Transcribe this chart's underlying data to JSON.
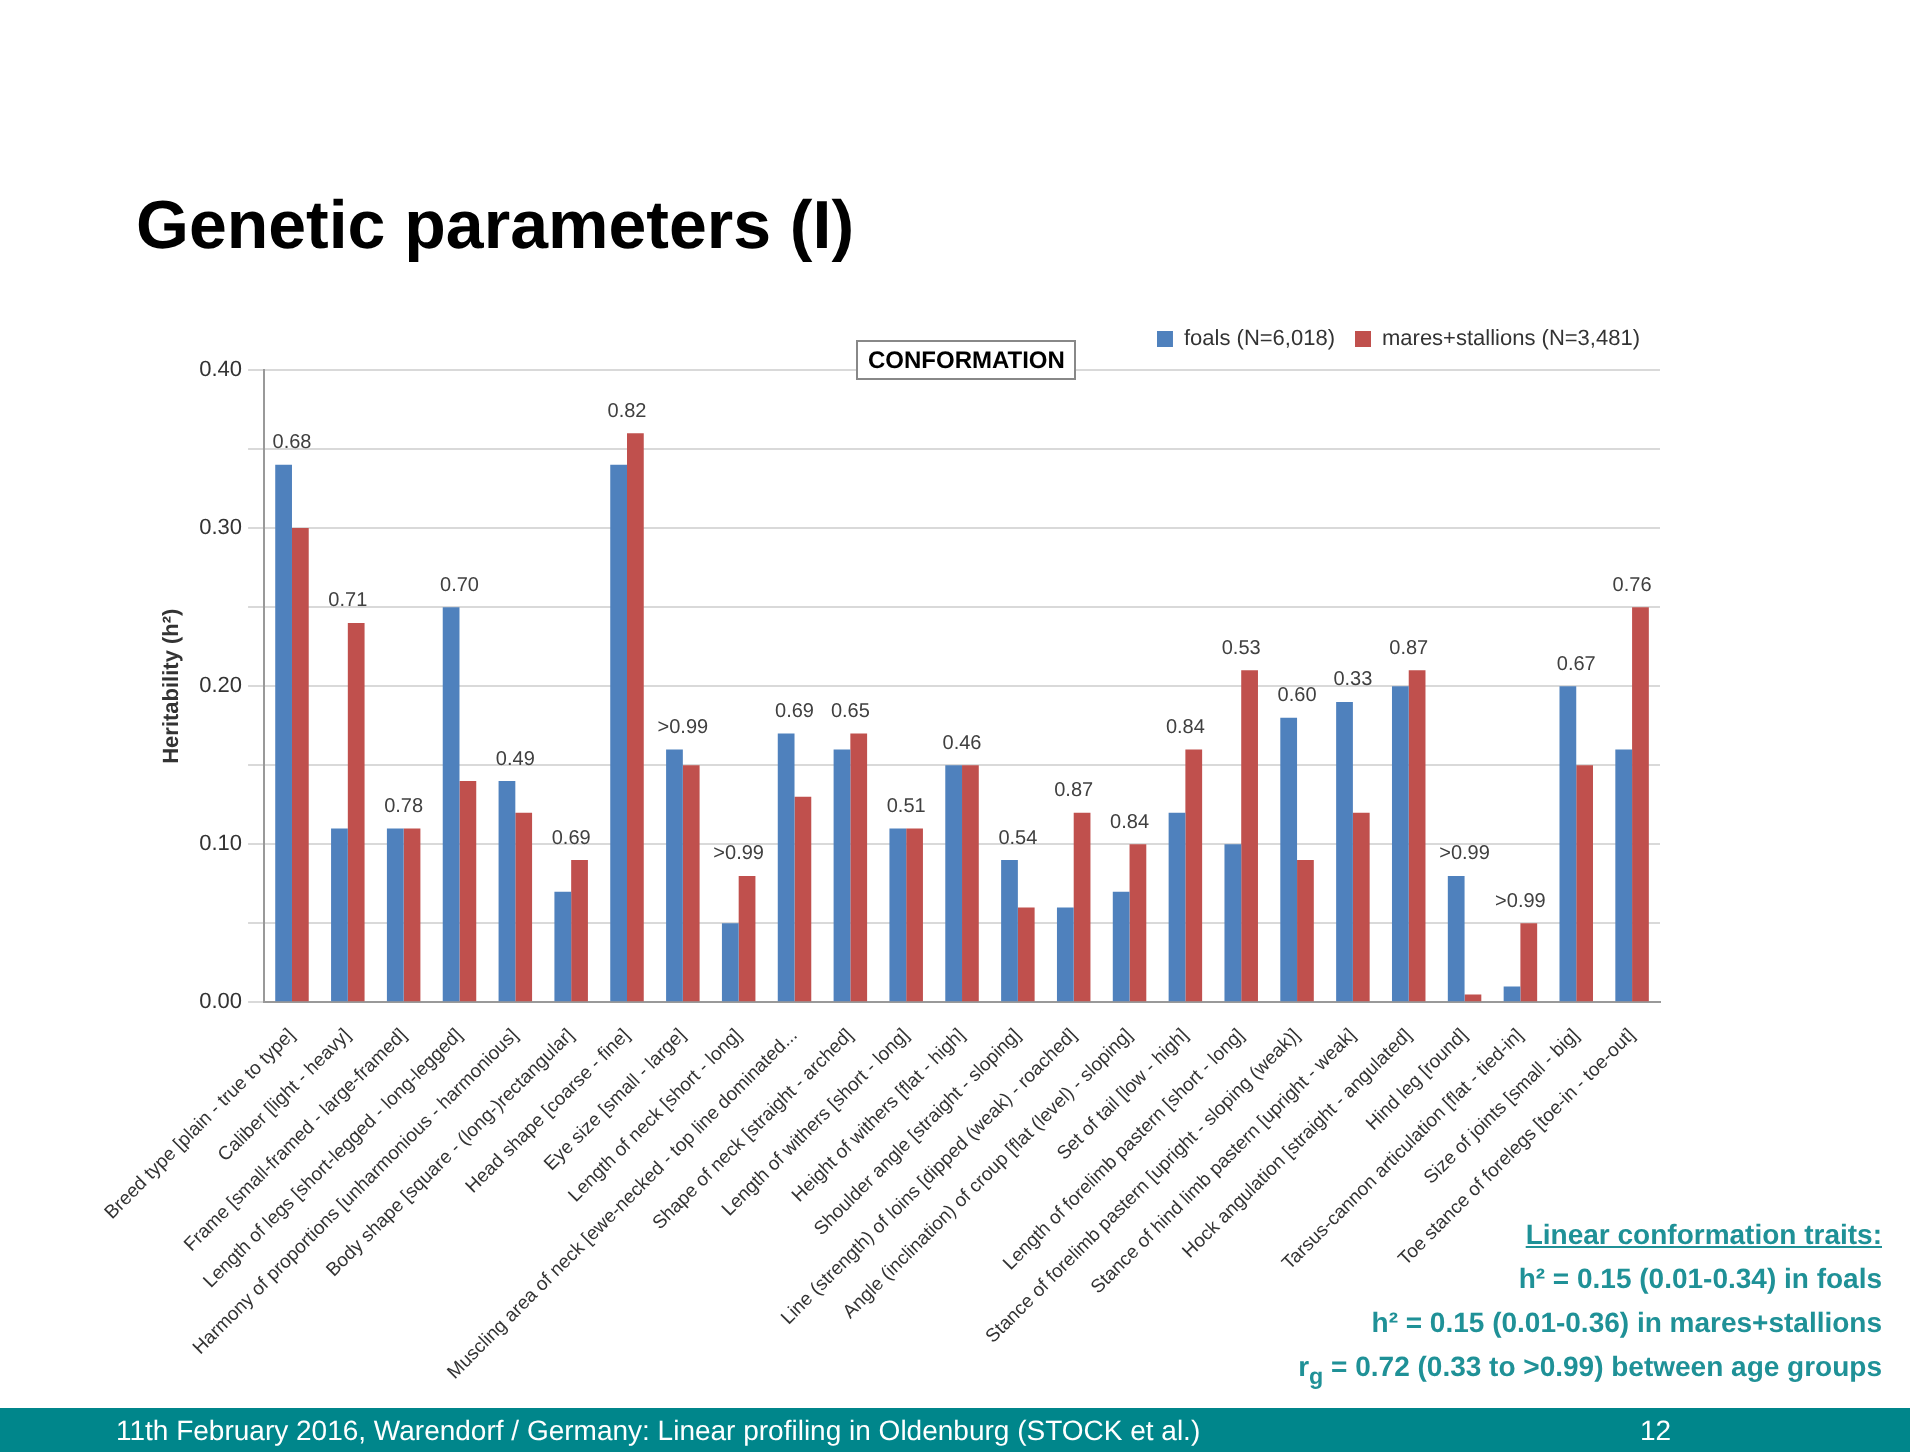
{
  "chart_data": {
    "type": "bar",
    "title": "Genetic parameters (I)",
    "ylabel": "Heritability (h²)",
    "categories": [
      "Breed type [plain - true to type]",
      "Caliber [light - heavy]",
      "Frame [small-framed - large-framed]",
      "Length of legs [short-legged - long-legged]",
      "Harmony of proportions [unharmonious - harmonious]",
      "Body shape [square - (long-)rectangular]",
      "Head shape [coarse - fine]",
      "Eye size [small - large]",
      "Length of neck [short - long]",
      "Muscling area of neck [ewe-necked - top line dominated...",
      "Shape of neck [straight - arched]",
      "Length of withers [short - long]",
      "Height of withers [flat - high]",
      "Shoulder angle [straight - sloping]",
      "Line (strength) of loins [dipped (weak) - roached]",
      "Angle (inclination) of croup [flat (level) - sloping]",
      "Set of tail [low - high]",
      "Length of forelimb pastern [short - long]",
      "Stance of forelimb pastern [upright - sloping (weak)]",
      "Stance of hind limb pastern [upright - weak]",
      "Hock angulation [straight - angulated]",
      "Hind leg [round]",
      "Tarsus-cannon articulation [flat - tied-in]",
      "Size of joints [small - big]",
      "Toe stance of forelegs [toe-in - toe-out]"
    ],
    "series": [
      {
        "name": "foals (N=6,018)",
        "color": "#4f81bd",
        "values": [
          0.34,
          0.11,
          0.11,
          0.25,
          0.14,
          0.07,
          0.34,
          0.16,
          0.05,
          0.17,
          0.16,
          0.11,
          0.15,
          0.09,
          0.06,
          0.07,
          0.12,
          0.1,
          0.18,
          0.19,
          0.2,
          0.08,
          0.01,
          0.2,
          0.16
        ]
      },
      {
        "name": "mares+stallions (N=3,481)",
        "color": "#c0504d",
        "values": [
          0.3,
          0.24,
          0.11,
          0.14,
          0.12,
          0.09,
          0.36,
          0.15,
          0.08,
          0.13,
          0.17,
          0.11,
          0.15,
          0.06,
          0.12,
          0.1,
          0.16,
          0.21,
          0.09,
          0.12,
          0.21,
          0.005,
          0.05,
          0.15,
          0.25
        ]
      }
    ],
    "ylim": [
      0,
      0.4
    ],
    "yticks": [
      {
        "value": 0,
        "label": "0.00"
      },
      {
        "value": 0.05,
        "label": null
      },
      {
        "value": 0.1,
        "label": "0.10"
      },
      {
        "value": 0.15,
        "label": null
      },
      {
        "value": 0.2,
        "label": "0.20"
      },
      {
        "value": 0.25,
        "label": null
      },
      {
        "value": 0.3,
        "label": "0.30"
      },
      {
        "value": 0.35,
        "label": null
      },
      {
        "value": 0.4,
        "label": "0.40"
      }
    ],
    "grid": "y",
    "legend": "top right",
    "annotations": [
      "CONFORMATION",
      "Linear conformation traits:",
      "h² = 0.15 (0.01-0.34) in foals",
      "h² = 0.15 (0.01-0.36) in mares+stallions",
      "r$_{g}$ = 0.72 (0.33 to >0.99) between age groups",
      "11th February 2016, Warendorf / Germany: Linear profiling in Oldenburg (STOCK et al.)",
      "12",
      {
        "text": "0.68",
        "x": "Breed type [plain - true to type]",
        "y": 0.34
      },
      {
        "text": "0.71",
        "x": "Caliber [light - heavy]",
        "y": 0.24
      },
      {
        "text": "0.78",
        "x": "Frame [small-framed - large-framed]",
        "y": 0.11
      },
      {
        "text": "0.70",
        "x": "Length of legs [short-legged - long-legged]",
        "y": 0.25
      },
      {
        "text": "0.49",
        "x": "Harmony of proportions [unharmonious - harmonious]",
        "y": 0.14
      },
      {
        "text": "0.69",
        "x": "Body shape [square - (long-)rectangular]",
        "y": 0.09
      },
      {
        "text": "0.82",
        "x": "Head shape [coarse - fine]",
        "y": 0.36
      },
      {
        "text": ">0.99",
        "x": "Eye size [small - large]",
        "y": 0.16
      },
      {
        "text": ">0.99",
        "x": "Length of neck [short - long]",
        "y": 0.08
      },
      {
        "text": "0.69",
        "x": "Muscling area of neck [ewe-necked - top line dominated...",
        "y": 0.17
      },
      {
        "text": "0.65",
        "x": "Shape of neck [straight - arched]",
        "y": 0.17
      },
      {
        "text": "0.51",
        "x": "Length of withers [short - long]",
        "y": 0.11
      },
      {
        "text": "0.46",
        "x": "Height of withers [flat - high]",
        "y": 0.15
      },
      {
        "text": "0.54",
        "x": "Shoulder angle [straight - sloping]",
        "y": 0.09
      },
      {
        "text": "0.87",
        "x": "Line (strength) of loins [dipped (weak) - roached]",
        "y": 0.12
      },
      {
        "text": "0.84",
        "x": "Angle (inclination) of croup [flat (level) - sloping]",
        "y": 0.1
      },
      {
        "text": "0.84",
        "x": "Set of tail [low - high]",
        "y": 0.16
      },
      {
        "text": "0.53",
        "x": "Length of forelimb pastern [short - long]",
        "y": 0.21
      },
      {
        "text": "0.60",
        "x": "Stance of forelimb pastern [upright - sloping (weak)]",
        "y": 0.18
      },
      {
        "text": "0.33",
        "x": "Stance of hind limb pastern [upright - weak]",
        "y": 0.19
      },
      {
        "text": "0.87",
        "x": "Hock angulation [straight - angulated]",
        "y": 0.21
      },
      {
        "text": ">0.99",
        "x": "Hind leg [round]",
        "y": 0.08
      },
      {
        "text": ">0.99",
        "x": "Tarsus-cannon articulation [flat - tied-in]",
        "y": 0.05
      },
      {
        "text": "0.67",
        "x": "Size of joints [small - big]",
        "y": 0.2
      },
      {
        "text": "0.76",
        "x": "Toe stance of forelegs [toe-in - toe-out]",
        "y": 0.25
      }
    ]
  }
}
